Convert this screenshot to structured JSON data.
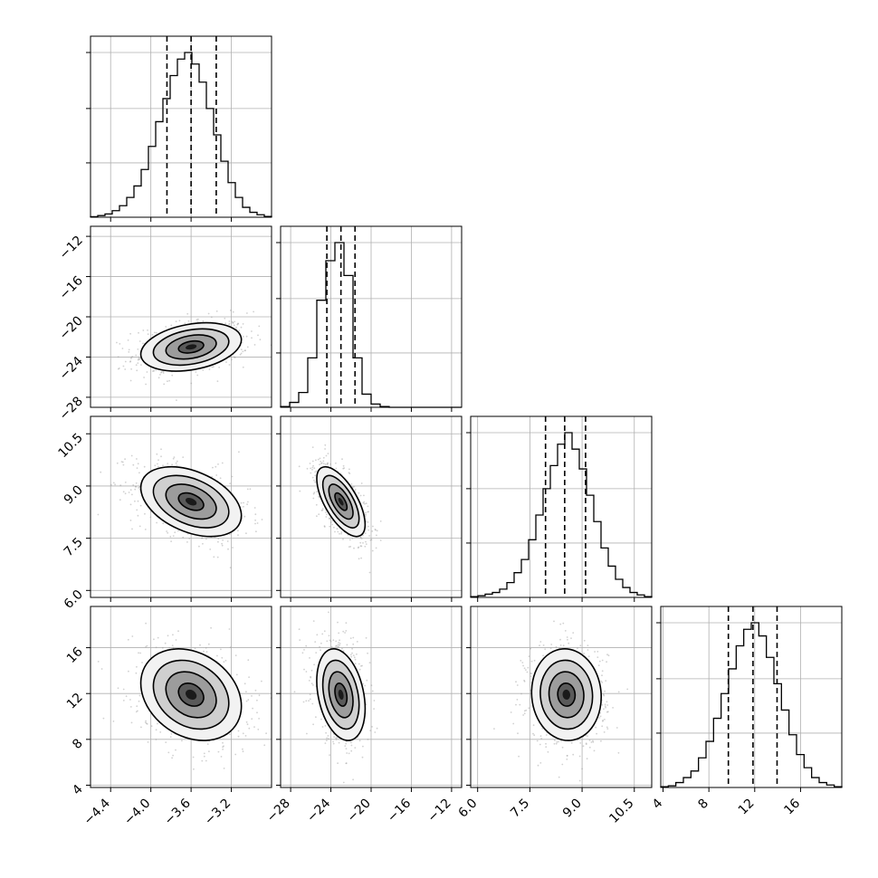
{
  "chart_data": {
    "type": "corner",
    "grid": true,
    "params": [
      {
        "range": [
          -4.6,
          -2.8
        ],
        "ticks": [
          -4.4,
          -4.0,
          -3.6,
          -3.2
        ],
        "tick_labels": [
          "−4.4",
          "−4.0",
          "−3.6",
          "−3.2"
        ],
        "quantiles": [
          -3.84,
          -3.6,
          -3.35
        ],
        "hist": [
          0.003,
          0.01,
          0.02,
          0.04,
          0.07,
          0.12,
          0.19,
          0.29,
          0.43,
          0.58,
          0.72,
          0.86,
          0.96,
          1.0,
          0.93,
          0.82,
          0.66,
          0.5,
          0.34,
          0.21,
          0.12,
          0.06,
          0.03,
          0.015,
          0.005
        ]
      },
      {
        "range": [
          -29,
          -11
        ],
        "ticks": [
          -28,
          -24,
          -20,
          -16,
          -12
        ],
        "tick_labels": [
          "−28",
          "−24",
          "−20",
          "−16",
          "−12"
        ],
        "quantiles": [
          -24.4,
          -23.0,
          -21.6
        ],
        "hist": [
          0.005,
          0.03,
          0.09,
          0.3,
          0.65,
          0.89,
          1.0,
          0.8,
          0.3,
          0.08,
          0.02,
          0.005,
          0,
          0,
          0,
          0,
          0,
          0,
          0,
          0
        ]
      },
      {
        "range": [
          5.8,
          11.0
        ],
        "ticks": [
          6.0,
          7.5,
          9.0,
          10.5
        ],
        "tick_labels": [
          "6.0",
          "7.5",
          "9.0",
          "10.5"
        ],
        "quantiles": [
          7.95,
          8.5,
          9.1
        ],
        "hist": [
          0.005,
          0.01,
          0.02,
          0.03,
          0.05,
          0.09,
          0.15,
          0.23,
          0.35,
          0.5,
          0.66,
          0.8,
          0.93,
          1.0,
          0.9,
          0.78,
          0.62,
          0.46,
          0.3,
          0.19,
          0.11,
          0.06,
          0.03,
          0.015,
          0.005
        ]
      },
      {
        "range": [
          3.8,
          19.6
        ],
        "ticks": [
          4,
          8,
          12,
          16
        ],
        "tick_labels": [
          "4",
          "8",
          "12",
          "16"
        ],
        "quantiles": [
          9.7,
          11.85,
          13.95
        ],
        "hist": [
          0.005,
          0.01,
          0.03,
          0.06,
          0.1,
          0.18,
          0.28,
          0.42,
          0.57,
          0.72,
          0.86,
          0.96,
          1.0,
          0.92,
          0.79,
          0.63,
          0.47,
          0.32,
          0.2,
          0.12,
          0.06,
          0.03,
          0.015,
          0.005
        ]
      }
    ],
    "pairs": [
      {
        "x": 0,
        "y": 1,
        "mean": [
          -3.6,
          -23.0
        ],
        "sd": [
          0.25,
          1.2
        ],
        "rho": 0.3
      },
      {
        "x": 0,
        "y": 2,
        "mean": [
          -3.6,
          8.55
        ],
        "sd": [
          0.25,
          0.5
        ],
        "rho": -0.4
      },
      {
        "x": 1,
        "y": 2,
        "mean": [
          -23.0,
          8.55
        ],
        "sd": [
          1.2,
          0.5
        ],
        "rho": -0.65
      },
      {
        "x": 0,
        "y": 3,
        "mean": [
          -3.6,
          11.9
        ],
        "sd": [
          0.25,
          2.0
        ],
        "rho": -0.25
      },
      {
        "x": 1,
        "y": 3,
        "mean": [
          -23.0,
          11.9
        ],
        "sd": [
          1.2,
          2.0
        ],
        "rho": -0.3
      },
      {
        "x": 2,
        "y": 3,
        "mean": [
          8.55,
          11.9
        ],
        "sd": [
          0.5,
          2.0
        ],
        "rho": -0.05
      }
    ],
    "contour_levels_sigma": [
      0.5,
      1.0,
      1.5,
      2.0
    ],
    "colors": {
      "line": "#000000",
      "grid": "#b0b0b0",
      "scatter": "#9a9a9a"
    }
  }
}
